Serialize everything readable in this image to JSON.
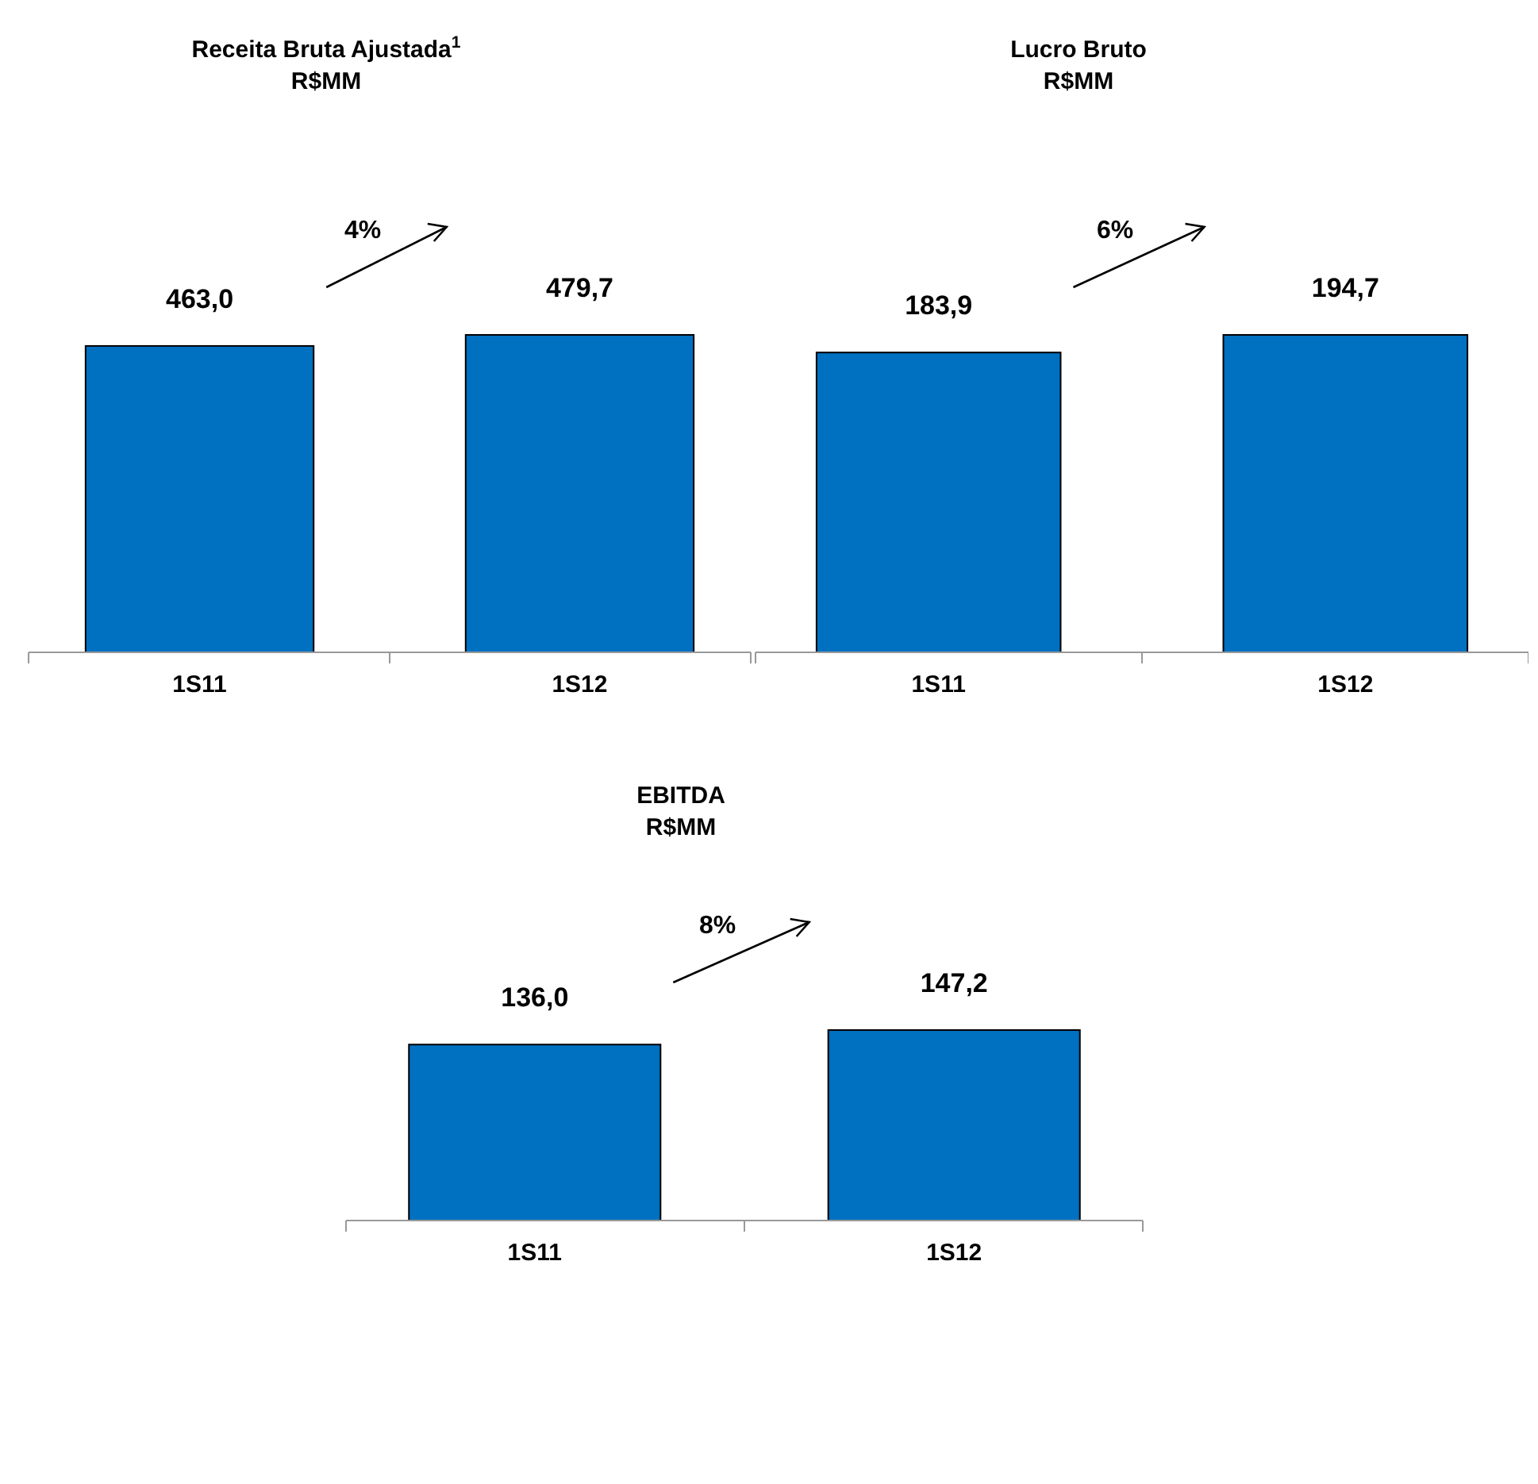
{
  "chart_data": [
    {
      "type": "bar",
      "title": "Receita Bruta  Ajustada$^{1}$",
      "subtitle": "R$MM",
      "categories": [
        "1S11",
        "1S12"
      ],
      "values": [
        463.0,
        479.7
      ],
      "value_labels": [
        "463,0",
        "479,7"
      ],
      "color": "#0070c0",
      "annotations": [
        "4%"
      ]
    },
    {
      "type": "bar",
      "title": "Lucro Bruto",
      "subtitle": "R$MM",
      "categories": [
        "1S11",
        "1S12"
      ],
      "values": [
        183.9,
        194.7
      ],
      "value_labels": [
        "183,9",
        "194,7"
      ],
      "color": "#0070c0",
      "annotations": [
        "6%"
      ]
    },
    {
      "type": "bar",
      "title": "EBITDA",
      "subtitle": "R$MM",
      "categories": [
        "1S11",
        "1S12"
      ],
      "values": [
        136.0,
        147.2
      ],
      "value_labels": [
        "136,0",
        "147,2"
      ],
      "color": "#0070c0",
      "annotations": [
        "8%"
      ]
    }
  ]
}
